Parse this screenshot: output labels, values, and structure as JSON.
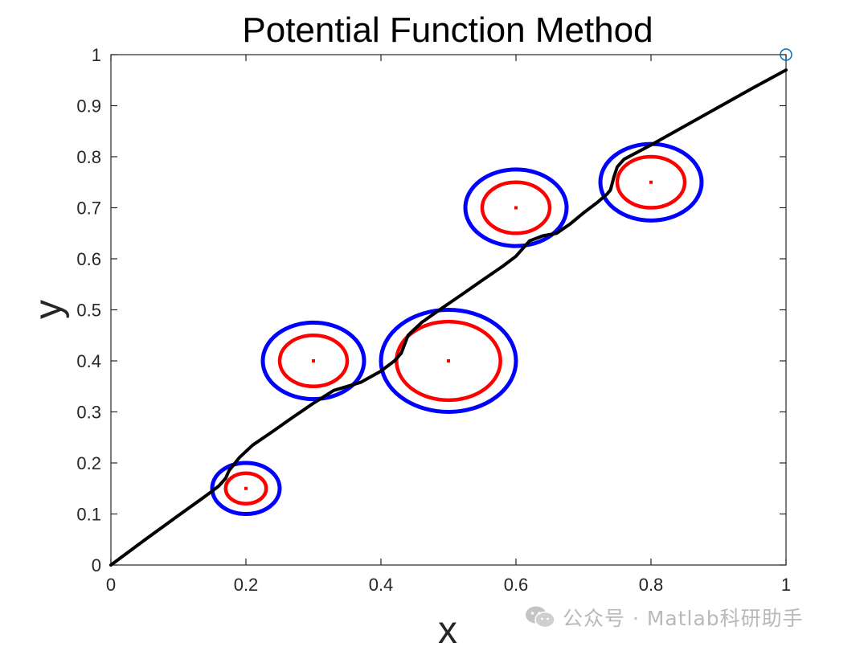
{
  "chart_data": {
    "type": "line",
    "title": "Potential Function Method",
    "xlabel": "x",
    "ylabel": "y",
    "xlim": [
      0,
      1
    ],
    "ylim": [
      0,
      1
    ],
    "xticks": [
      "0",
      "0.2",
      "0.4",
      "0.6",
      "0.8",
      "1"
    ],
    "yticks": [
      "0",
      "0.1",
      "0.2",
      "0.3",
      "0.4",
      "0.5",
      "0.6",
      "0.7",
      "0.8",
      "0.9",
      "1"
    ],
    "grid": false,
    "colors": {
      "path": "#000000",
      "inner": "#ff0000",
      "outer": "#0000ff",
      "goal": "#0072bd"
    },
    "path": {
      "x": [
        0,
        0.05,
        0.1,
        0.14,
        0.16,
        0.17,
        0.175,
        0.19,
        0.21,
        0.24,
        0.27,
        0.3,
        0.33,
        0.35,
        0.37,
        0.4,
        0.42,
        0.43,
        0.435,
        0.44,
        0.46,
        0.49,
        0.52,
        0.55,
        0.58,
        0.6,
        0.62,
        0.64,
        0.66,
        0.68,
        0.7,
        0.72,
        0.735,
        0.74,
        0.745,
        0.75,
        0.76,
        0.8,
        0.85,
        0.9,
        0.95,
        1
      ],
      "y": [
        0,
        0.049,
        0.097,
        0.135,
        0.155,
        0.17,
        0.185,
        0.21,
        0.235,
        0.262,
        0.29,
        0.317,
        0.342,
        0.35,
        0.358,
        0.38,
        0.4,
        0.415,
        0.432,
        0.45,
        0.475,
        0.503,
        0.53,
        0.558,
        0.585,
        0.605,
        0.635,
        0.645,
        0.65,
        0.668,
        0.69,
        0.71,
        0.727,
        0.735,
        0.76,
        0.78,
        0.795,
        0.823,
        0.86,
        0.897,
        0.934,
        0.97
      ]
    },
    "obstacles": [
      {
        "center": [
          0.2,
          0.15
        ],
        "inner_radius": 0.03,
        "outer_radius": 0.05
      },
      {
        "center": [
          0.3,
          0.4
        ],
        "inner_radius": 0.05,
        "outer_radius": 0.075
      },
      {
        "center": [
          0.5,
          0.4
        ],
        "inner_radius": 0.077,
        "outer_radius": 0.1
      },
      {
        "center": [
          0.6,
          0.7
        ],
        "inner_radius": 0.05,
        "outer_radius": 0.075
      },
      {
        "center": [
          0.8,
          0.75
        ],
        "inner_radius": 0.05,
        "outer_radius": 0.075
      }
    ],
    "goal": [
      1,
      1
    ]
  },
  "watermark": {
    "text": "公众号 · Matlab科研助手",
    "icon": "wechat-icon"
  }
}
